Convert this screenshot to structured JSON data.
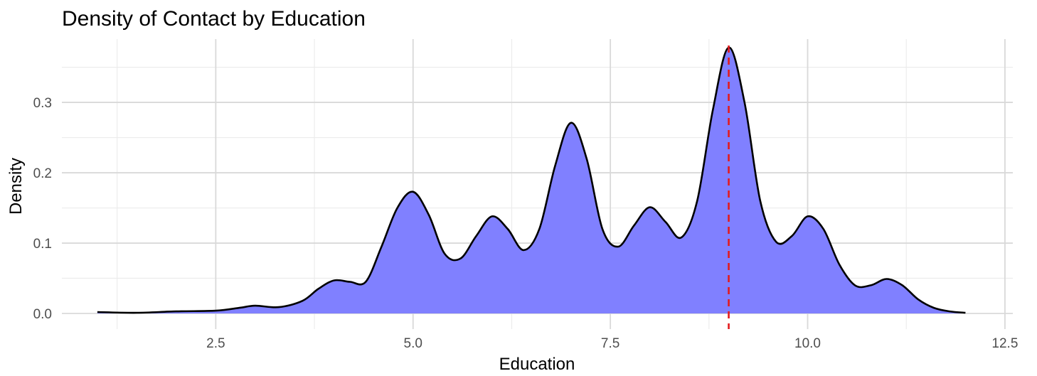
{
  "chart_data": {
    "type": "area",
    "title": "Density of Contact by Education",
    "xlabel": "Education",
    "ylabel": "Density",
    "xlim": [
      0.55,
      12.6
    ],
    "ylim": [
      -0.002,
      0.39
    ],
    "x_ticks": [
      2.5,
      5.0,
      7.5,
      10.0,
      12.5
    ],
    "x_tick_labels": [
      "2.5",
      "5.0",
      "7.5",
      "10.0",
      "12.5"
    ],
    "y_ticks": [
      0.0,
      0.1,
      0.2,
      0.3
    ],
    "y_tick_labels": [
      "0.0",
      "0.1",
      "0.2",
      "0.3"
    ],
    "x_minor_ticks": [
      1.25,
      3.75,
      6.25,
      8.75,
      11.25
    ],
    "y_minor_ticks": [
      0.05,
      0.15,
      0.25,
      0.35
    ],
    "grid": true,
    "fill_color": "#8080ff",
    "line_color": "#000000",
    "reference_line": {
      "x": 9,
      "color": "#e31a1c",
      "style": "dashed"
    },
    "series": [
      {
        "x": [
          1.0,
          1.5,
          2.0,
          2.5,
          2.8,
          3.0,
          3.3,
          3.6,
          3.8,
          4.0,
          4.2,
          4.4,
          4.6,
          4.8,
          5.0,
          5.2,
          5.4,
          5.6,
          5.8,
          6.0,
          6.2,
          6.4,
          6.6,
          6.8,
          7.0,
          7.2,
          7.4,
          7.6,
          7.8,
          8.0,
          8.2,
          8.4,
          8.6,
          8.8,
          9.0,
          9.2,
          9.4,
          9.6,
          9.8,
          10.0,
          10.2,
          10.4,
          10.6,
          10.8,
          11.0,
          11.2,
          11.4,
          11.6,
          11.8,
          12.0
        ],
        "y": [
          0.002,
          0.001,
          0.003,
          0.004,
          0.008,
          0.011,
          0.009,
          0.018,
          0.035,
          0.047,
          0.045,
          0.045,
          0.095,
          0.15,
          0.173,
          0.14,
          0.085,
          0.078,
          0.11,
          0.138,
          0.12,
          0.09,
          0.12,
          0.21,
          0.271,
          0.22,
          0.12,
          0.095,
          0.125,
          0.151,
          0.13,
          0.108,
          0.16,
          0.29,
          0.378,
          0.3,
          0.16,
          0.102,
          0.11,
          0.138,
          0.12,
          0.07,
          0.04,
          0.04,
          0.049,
          0.04,
          0.02,
          0.008,
          0.003,
          0.001
        ]
      }
    ]
  }
}
